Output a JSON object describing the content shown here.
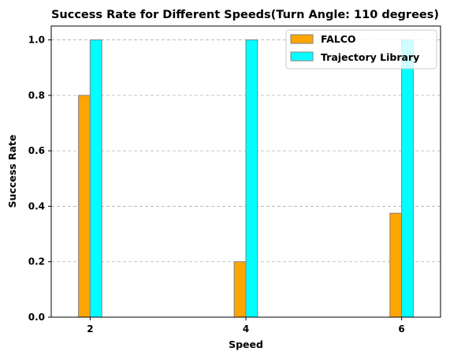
{
  "chart_data": {
    "type": "bar",
    "title": "Success Rate for Different Speeds(Turn Angle: 110 degrees)",
    "xlabel": "Speed",
    "ylabel": "Success Rate",
    "x": [
      2,
      4,
      6
    ],
    "x_ticks": [
      "2",
      "4",
      "6"
    ],
    "xlim": [
      1.5,
      6.5
    ],
    "ylim": [
      0,
      1.05
    ],
    "y_ticks": [
      "0.0",
      "0.2",
      "0.4",
      "0.6",
      "0.8",
      "1.0"
    ],
    "grid": "y dashed",
    "legend_position": "top-right",
    "series": [
      {
        "name": "FALCO",
        "values": [
          0.8,
          0.2,
          0.375
        ],
        "color": "#FFA500",
        "edge": "#808080"
      },
      {
        "name": "Trajectory Library",
        "values": [
          1.0,
          1.0,
          1.0
        ],
        "color": "#00FFFF",
        "edge": "#808080"
      }
    ]
  }
}
